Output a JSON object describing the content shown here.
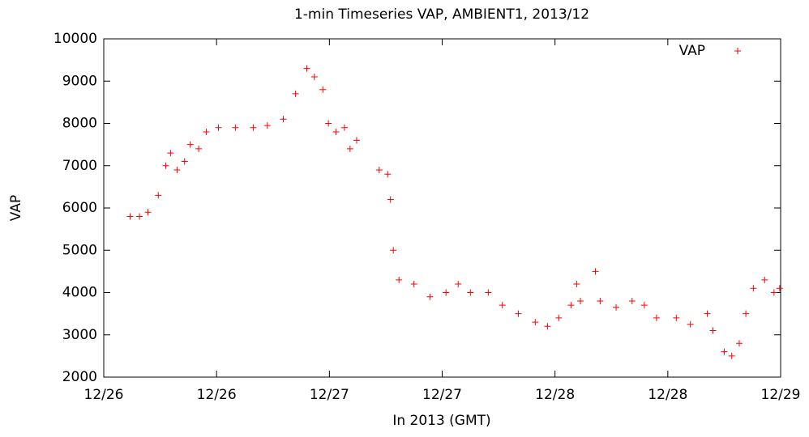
{
  "chart_data": {
    "type": "scatter",
    "title": "1-min Timeseries VAP, AMBIENT1, 2013/12",
    "xlabel": "In 2013 (GMT)",
    "ylabel": "VAP",
    "x": [
      2.8,
      3.8,
      4.7,
      5.8,
      6.6,
      7.1,
      7.8,
      8.6,
      9.2,
      10.1,
      10.9,
      12.2,
      14.0,
      15.9,
      17.4,
      19.1,
      20.4,
      21.6,
      22.4,
      23.3,
      23.9,
      24.7,
      25.6,
      26.2,
      26.9,
      29.3,
      30.2,
      30.5,
      30.8,
      31.4,
      33.0,
      34.7,
      36.4,
      37.7,
      39.0,
      40.9,
      42.4,
      44.1,
      45.9,
      47.2,
      48.4,
      49.7,
      50.3,
      50.7,
      52.3,
      52.8,
      54.5,
      56.2,
      57.5,
      58.8,
      60.9,
      62.4,
      64.2,
      64.8,
      66.0,
      66.8,
      67.6,
      68.3,
      69.1,
      70.3,
      71.3,
      71.9
    ],
    "series": [
      {
        "name": "VAP",
        "color": "#ff0000",
        "values": [
          5800,
          5800,
          5900,
          6300,
          7000,
          7300,
          6900,
          7100,
          7500,
          7400,
          7800,
          7900,
          7900,
          7900,
          7950,
          8100,
          8700,
          9300,
          9100,
          8800,
          8000,
          7800,
          7900,
          7400,
          7600,
          6900,
          6800,
          6200,
          5000,
          4300,
          4200,
          3900,
          4000,
          4200,
          4000,
          4000,
          3700,
          3500,
          3300,
          3200,
          3400,
          3700,
          4200,
          3800,
          4500,
          3800,
          3650,
          3800,
          3700,
          3400,
          3400,
          3250,
          3500,
          3100,
          2600,
          2500,
          2800,
          3500,
          4100,
          4300,
          4000,
          4100
        ]
      }
    ],
    "xlim": [
      0,
      72
    ],
    "xticks": [
      {
        "value": 0,
        "label": "12/26"
      },
      {
        "value": 12,
        "label": "12/26"
      },
      {
        "value": 24,
        "label": "12/27"
      },
      {
        "value": 36,
        "label": "12/27"
      },
      {
        "value": 48,
        "label": "12/28"
      },
      {
        "value": 60,
        "label": "12/28"
      },
      {
        "value": 72,
        "label": "12/29"
      }
    ],
    "ylim": [
      2000,
      10000
    ],
    "yticks": [
      2000,
      3000,
      4000,
      5000,
      6000,
      7000,
      8000,
      9000,
      10000
    ],
    "legend": "top-right"
  }
}
